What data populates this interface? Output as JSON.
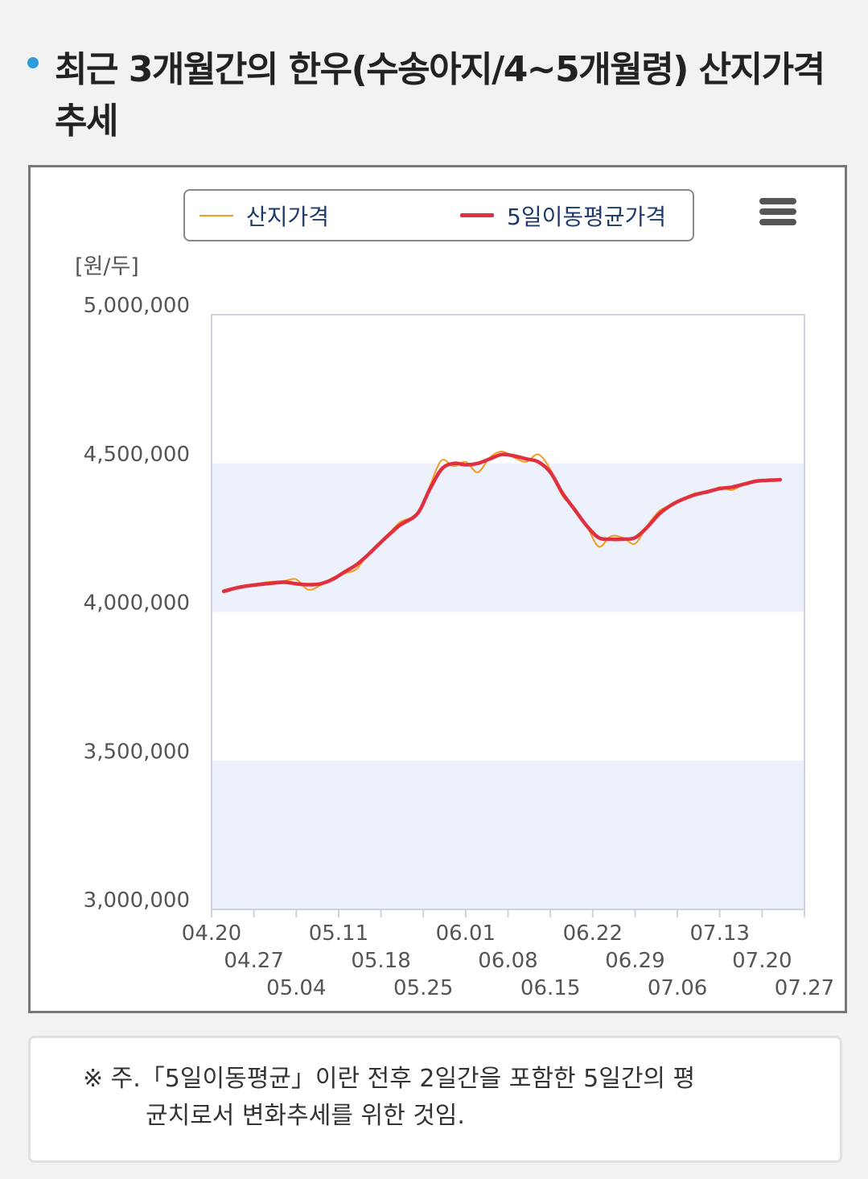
{
  "title": "최근 3개월간의 한우(수송아지/4~5개월령) 산지가격 추세",
  "menu_icon": "hamburger-menu-icon",
  "colors": {
    "raw": "#f39c1f",
    "avg": "#e03040",
    "band": "#edf1fb",
    "bullet": "#2f9bd9"
  },
  "note": {
    "line1": "※ 주.「5일이동평균」이란 전후 2일간을 포함한 5일간의 평",
    "line2": "균치로서 변화추세를 위한 것임."
  },
  "chart_data": {
    "type": "line",
    "unit_label": "[원/두]",
    "ylim": [
      3000000,
      5000000
    ],
    "yticks": [
      "5,000,000",
      "4,500,000",
      "4,000,000",
      "3,500,000",
      "3,000,000"
    ],
    "xticks": [
      "04.20",
      "04.27",
      "05.04",
      "05.11",
      "05.18",
      "05.25",
      "06.01",
      "06.08",
      "06.15",
      "06.22",
      "06.29",
      "07.06",
      "07.13",
      "07.20",
      "07.27"
    ],
    "series": [
      {
        "name": "산지가격",
        "x": [
          "04.22",
          "04.25",
          "04.29",
          "05.02",
          "05.04",
          "05.06",
          "05.08",
          "05.10",
          "05.12",
          "05.14",
          "05.16",
          "05.18",
          "05.21",
          "05.24",
          "05.26",
          "05.28",
          "05.30",
          "06.01",
          "06.03",
          "06.05",
          "06.07",
          "06.09",
          "06.11",
          "06.13",
          "06.15",
          "06.17",
          "06.19",
          "06.21",
          "06.23",
          "06.25",
          "06.27",
          "06.29",
          "07.01",
          "07.03",
          "07.05",
          "07.07",
          "07.09",
          "07.11",
          "07.13",
          "07.15",
          "07.17",
          "07.19",
          "07.21",
          "07.23"
        ],
        "values": [
          4065000,
          4085000,
          4100000,
          4105000,
          4110000,
          4075000,
          4090000,
          4115000,
          4130000,
          4145000,
          4200000,
          4230000,
          4300000,
          4330000,
          4420000,
          4510000,
          4490000,
          4505000,
          4470000,
          4520000,
          4540000,
          4520000,
          4505000,
          4530000,
          4480000,
          4390000,
          4350000,
          4290000,
          4220000,
          4255000,
          4250000,
          4230000,
          4290000,
          4340000,
          4360000,
          4380000,
          4400000,
          4400000,
          4420000,
          4410000,
          4430000,
          4440000,
          4445000,
          4445000
        ]
      },
      {
        "name": "5일이동평균가격",
        "x": [
          "04.22",
          "04.25",
          "04.29",
          "05.02",
          "05.04",
          "05.06",
          "05.08",
          "05.10",
          "05.12",
          "05.14",
          "05.16",
          "05.18",
          "05.21",
          "05.24",
          "05.26",
          "05.28",
          "05.30",
          "06.01",
          "06.03",
          "06.05",
          "06.07",
          "06.09",
          "06.11",
          "06.13",
          "06.15",
          "06.17",
          "06.19",
          "06.21",
          "06.23",
          "06.25",
          "06.27",
          "06.29",
          "07.01",
          "07.03",
          "07.05",
          "07.07",
          "07.09",
          "07.11",
          "07.13",
          "07.15",
          "07.17",
          "07.19",
          "07.21",
          "07.23"
        ],
        "values": [
          4070000,
          4085000,
          4095000,
          4100000,
          4095000,
          4092000,
          4095000,
          4110000,
          4135000,
          4160000,
          4195000,
          4235000,
          4290000,
          4330000,
          4410000,
          4480000,
          4500000,
          4495000,
          4500000,
          4515000,
          4530000,
          4525000,
          4515000,
          4505000,
          4470000,
          4400000,
          4345000,
          4290000,
          4250000,
          4245000,
          4245000,
          4250000,
          4285000,
          4330000,
          4360000,
          4380000,
          4395000,
          4405000,
          4415000,
          4420000,
          4430000,
          4440000,
          4443000,
          4445000
        ]
      }
    ],
    "grid": false,
    "legend_position": "top"
  }
}
